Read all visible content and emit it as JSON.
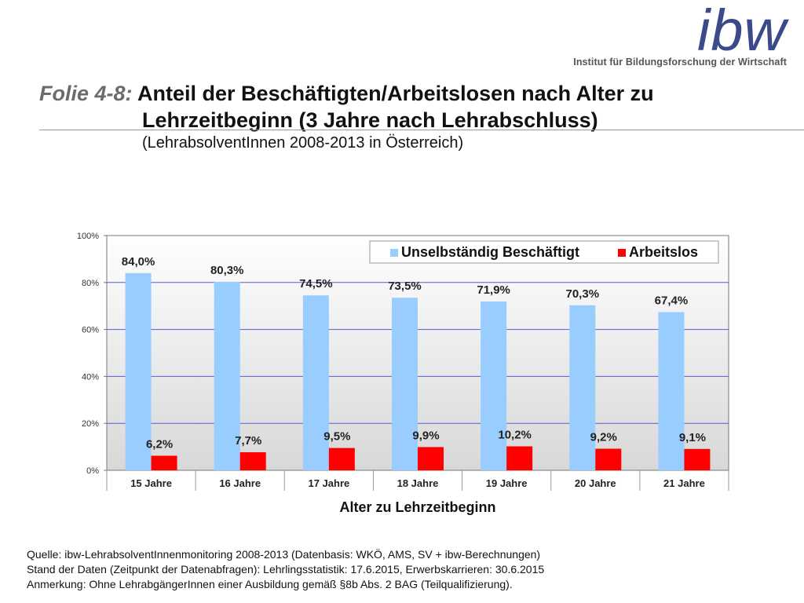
{
  "logo": {
    "word": "ibw",
    "subtitle": "Institut für Bildungsforschung der Wirtschaft",
    "color": "#3c4a8a"
  },
  "title": {
    "prefix": "Folie 4-8:",
    "line1": "Anteil der Beschäftigten/Arbeitslosen nach Alter zu",
    "line2": "Lehrzeitbeginn (3 Jahre nach Lehrabschluss)",
    "subtitle": "(LehrabsolventInnen 2008-2013 in Österreich)"
  },
  "chart_data": {
    "type": "bar",
    "categories": [
      "15 Jahre",
      "16 Jahre",
      "17 Jahre",
      "18 Jahre",
      "19 Jahre",
      "20 Jahre",
      "21 Jahre"
    ],
    "series": [
      {
        "name": "Unselbständig Beschäftigt",
        "color": "#99ccff",
        "values": [
          84.0,
          80.3,
          74.5,
          73.5,
          71.9,
          70.3,
          67.4
        ],
        "labels": [
          "84,0%",
          "80,3%",
          "74,5%",
          "73,5%",
          "71,9%",
          "70,3%",
          "67,4%"
        ]
      },
      {
        "name": "Arbeitslos",
        "color": "#ff0000",
        "values": [
          6.2,
          7.7,
          9.5,
          9.9,
          10.2,
          9.2,
          9.1
        ],
        "labels": [
          "6,2%",
          "7,7%",
          "9,5%",
          "9,9%",
          "10,2%",
          "9,2%",
          "9,1%"
        ]
      }
    ],
    "xlabel": "Alter zu Lehrzeitbeginn",
    "ylabel": "",
    "ylim": [
      0,
      100
    ],
    "yticks": [
      "0%",
      "20%",
      "40%",
      "60%",
      "80%",
      "100%"
    ],
    "grid": true,
    "legend": "top-right"
  },
  "footer": {
    "line1": "Quelle: ibw-LehrabsolventInnenmonitoring 2008-2013 (Datenbasis: WKÖ, AMS, SV + ibw-Berechnungen)",
    "line2": "Stand der Daten (Zeitpunkt der Datenabfragen): Lehrlingsstatistik: 17.6.2015, Erwerbskarrieren: 30.6.2015",
    "line3": "Anmerkung:  Ohne LehrabgängerInnen einer Ausbildung gemäß §8b Abs. 2 BAG (Teilqualifizierung)."
  }
}
